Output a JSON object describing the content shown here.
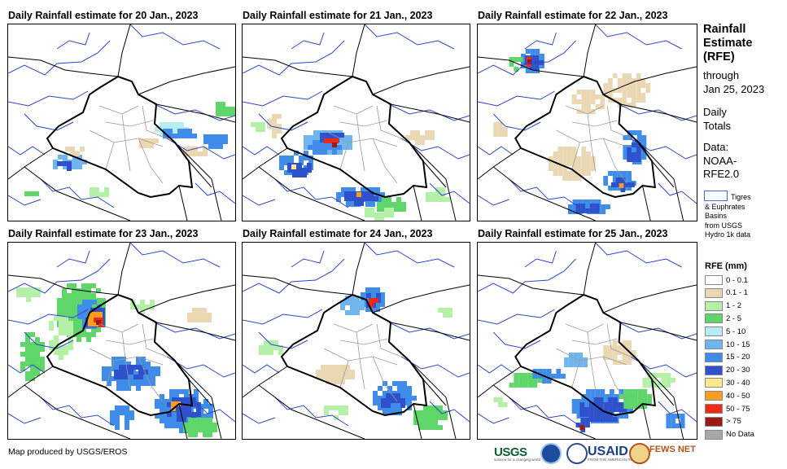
{
  "panels": [
    {
      "title": "Daily Rainfall estimate for 20 Jan., 2023"
    },
    {
      "title": "Daily Rainfall estimate for 21 Jan., 2023"
    },
    {
      "title": "Daily Rainfall estimate for 22 Jan., 2023"
    },
    {
      "title": "Daily Rainfall estimate for 23 Jan., 2023"
    },
    {
      "title": "Daily Rainfall estimate for 24 Jan., 2023"
    },
    {
      "title": "Daily Rainfall estimate for 25 Jan., 2023"
    }
  ],
  "sidebar": {
    "title_lines": [
      "Rainfall",
      "Estimate",
      "(RFE)"
    ],
    "through_lines": [
      "through",
      "Jan 25, 2023"
    ],
    "totals_lines": [
      "Daily",
      "Totals"
    ],
    "data_lines": [
      "Data:",
      "NOAA-",
      "RFE2.0"
    ],
    "basin_lines": [
      "Tigres",
      "& Euphrates",
      "Basins",
      "from USGS",
      "Hydro 1k data"
    ]
  },
  "legend": {
    "title": "RFE (mm)",
    "items": [
      {
        "label": "0 - 0.1",
        "color": "#ffffff"
      },
      {
        "label": "0.1 - 1",
        "color": "#ead8b4"
      },
      {
        "label": "1 - 2",
        "color": "#b5f0a8"
      },
      {
        "label": "2 - 5",
        "color": "#5fd66a"
      },
      {
        "label": "5 - 10",
        "color": "#b8ecf4"
      },
      {
        "label": "10 - 15",
        "color": "#6fb6ef"
      },
      {
        "label": "15 - 20",
        "color": "#3f8de8"
      },
      {
        "label": "20 - 30",
        "color": "#2f52cc"
      },
      {
        "label": "30 - 40",
        "color": "#ffe98a"
      },
      {
        "label": "40 - 50",
        "color": "#ff9d1c"
      },
      {
        "label": "50 - 75",
        "color": "#ee2a12"
      },
      {
        "label": "> 75",
        "color": "#9c1a16"
      },
      {
        "label": "No Data",
        "color": "#a8a8a8"
      }
    ]
  },
  "footer": {
    "credit": "Map produced by USGS/EROS",
    "logos": {
      "usgs": "USGS",
      "usaid": "USAID",
      "fews": "FEWS NET",
      "usgs_tagline": "science for a changing world",
      "usaid_tagline": "FROM THE AMERICAN PEOPLE"
    }
  }
}
